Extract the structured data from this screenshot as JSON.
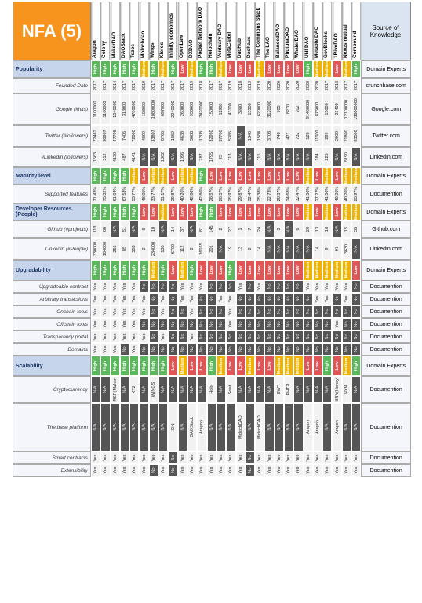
{
  "title": "NFA (5)",
  "source_header": "Source of Knowledge",
  "projects": [
    "Aragon",
    "Colony",
    "MakerDAO",
    "DAOStack",
    "Tezos",
    "Molochdao",
    "Wings",
    "Kleros",
    "Infinity economics",
    "OpenLaw",
    "DXDAO",
    "Pocket Network DAO",
    "Holochain",
    "Ventuary DAO",
    "MetaCartel",
    "DaoHub",
    "Daohaus",
    "The Commons Stack",
    "The LAO",
    "BalancedDAO",
    "PhuturaDAO",
    "WhalerDAO",
    "UNI DAO",
    "Metable DAO",
    "GovBlocks",
    "1RiveDAO",
    "Nexus mutual",
    "Compound"
  ],
  "colors": {
    "high": "#5cb85c",
    "low": "#e05555",
    "medium": "#f0b400",
    "na": "#555555"
  },
  "rows": [
    {
      "label": "Popularity",
      "section": true,
      "source": "Domain Experts",
      "values": [
        "High",
        "High",
        "High",
        "High",
        "High",
        "Medium",
        "High",
        "Medium",
        "High",
        "Low",
        "Medium",
        "High",
        "High",
        "Medium",
        "Low",
        "Low",
        "Low",
        "Medium",
        "Low",
        "Low",
        "Low",
        "Low",
        "High",
        "Medium",
        "Medium",
        "Low",
        "Medium",
        "High"
      ]
    },
    {
      "label": "Founded Date",
      "source": "crunchbase.com",
      "values": [
        "2017",
        "2017",
        "2014",
        "2017",
        "2017",
        "2019",
        "2017",
        "2017",
        "2017",
        "2017",
        "2019",
        "2018",
        "2017",
        "2017",
        "2019",
        "2018",
        "2019",
        "2019",
        "2020",
        "2020",
        "2020",
        "2020",
        "2020",
        "2020",
        "2017",
        "2018",
        "2017",
        "2017"
      ]
    },
    {
      "label": "Google (#hits)",
      "source": "Google.com",
      "values": [
        "1100000",
        "1160000",
        "1040000",
        "318000",
        "4700000",
        "108000",
        "10800000",
        "697000",
        "2240000",
        "260000",
        "936000",
        "2420000",
        "150000",
        "11900",
        "43100",
        "3980",
        "13300",
        "620000",
        "3120000",
        "705",
        "8270",
        "702",
        "91400000",
        "876000",
        "15000",
        "23400",
        "12100000",
        "136000000"
      ]
    },
    {
      "label": "Twitter (#followers)",
      "source": "Twitter.com",
      "values": [
        "72462",
        "30987",
        "47708",
        "7405",
        "72000",
        "4899",
        "33807",
        "8765",
        "1859",
        "4638",
        "3683",
        "1208",
        "32990",
        "37700",
        "5385",
        "N/A",
        "1340",
        "1584",
        "3703",
        "748",
        "471",
        "732",
        "128",
        "11600",
        "299",
        "2030",
        "21800",
        "83500"
      ]
    },
    {
      "label": "#Linkedin (followers)",
      "source": "LinkedIn.com",
      "values": [
        "1563",
        "312",
        "4130",
        "487",
        "4141",
        "N/A",
        "N/A",
        "1362",
        "N/A",
        "1096",
        "N/A",
        "287",
        "1795",
        "25",
        "113",
        "N/A",
        "N/A",
        "115",
        "N/A",
        "N/A",
        "N/A",
        "N/A",
        "N/A",
        "184",
        "225",
        "N/A",
        "5190",
        "N/A"
      ]
    },
    {
      "label": "Maturity level",
      "section": true,
      "source": "Domain Experts",
      "values": [
        "High",
        "High",
        "High",
        "High",
        "Medium",
        "Low",
        "Medium",
        "Medium",
        "Low",
        "Medium",
        "Medium",
        "High",
        "Low",
        "Low",
        "Low",
        "Low",
        "Low",
        "Low",
        "Low",
        "Low",
        "Low",
        "Low",
        "Medium",
        "Low",
        "Medium",
        "Low",
        "Medium",
        "Medium"
      ]
    },
    {
      "label": "Supported features",
      "source": "Documention",
      "values": [
        "71.43%",
        "75.32%",
        "61.04%",
        "67.53%",
        "33.77%",
        "48.05%",
        "33.77%",
        "31.17%",
        "29.87%",
        "40.26%",
        "42.86%",
        "42.86%",
        "28.57%",
        "28.57%",
        "25.97%",
        "29.87%",
        "32.47%",
        "25.38%",
        "22.73%",
        "28.57%",
        "24.68%",
        "32.47%",
        "41.56%",
        "27.27%",
        "41.56%",
        "40.26%",
        "40.26%",
        "25.97%"
      ]
    },
    {
      "label": "Developer Resources (People)",
      "section": true,
      "source": "Domain Experts",
      "values": [
        "High",
        "High",
        "High",
        "High",
        "High",
        "Low",
        "Low",
        "Medium",
        "Low",
        "Low",
        "Low",
        "High",
        "High",
        "Low",
        "Low",
        "Low",
        "Low",
        "Low",
        "Low",
        "Low",
        "Low",
        "Low",
        "Medium",
        "Low",
        "Medium",
        "Low",
        "Medium",
        "Medium"
      ]
    },
    {
      "label": "Github (#projects)",
      "source": "Github.com",
      "values": [
        "113",
        "68",
        "N/A",
        "51",
        "N/A",
        "6",
        "10",
        "N/A",
        "14",
        "37",
        "N/A",
        "81",
        "145",
        "2",
        "27",
        "1",
        "7",
        "24",
        "N/A",
        "3",
        "N/A",
        "6",
        "20",
        "13",
        "10",
        "N/A",
        "15",
        "35"
      ]
    },
    {
      "label": "Linkedin (#People)",
      "source": "LinkedIn.com",
      "values": [
        "330000",
        "184000",
        "256",
        "85",
        "553",
        "2",
        "234000",
        "136",
        "6700",
        "112",
        "2",
        "26165",
        "201",
        "N/A",
        "19",
        "13",
        "2",
        "14",
        "N/A",
        "N/A",
        "N/A",
        "N/A",
        "N/A",
        "14",
        "9",
        "97",
        "3630",
        "N/A"
      ]
    },
    {
      "label": "Upgradability",
      "section": true,
      "source": "Domain Experts",
      "values": [
        "High",
        "High",
        "High",
        "High",
        "High",
        "High",
        "Medium",
        "High",
        "Low",
        "Medium",
        "High",
        "Low",
        "Low",
        "Low",
        "High",
        "Low",
        "Low",
        "Low",
        "Low",
        "Low",
        "Low",
        "Low",
        "Medium",
        "Medium",
        "Medium",
        "Medium",
        "Medium",
        "Low"
      ]
    },
    {
      "label": "Upgradeable contract",
      "source": "Documention",
      "values": [
        "Yes",
        "Yes",
        "Yes",
        "Yes",
        "Yes",
        "No",
        "No",
        "No",
        "No",
        "Yes",
        "Yes",
        "Yes",
        "No",
        "No",
        "No",
        "Yes",
        "No",
        "Yes",
        "No",
        "No",
        "No",
        "No",
        "Yes",
        "Yes",
        "Yes",
        "Yes",
        "Yes",
        "No"
      ]
    },
    {
      "label": "Arbitrary transactions",
      "source": "Documention",
      "values": [
        "Yes",
        "Yes",
        "Yes",
        "Yes",
        "Yes",
        "Yes",
        "No",
        "Yes",
        "No",
        "Yes",
        "Yes",
        "No",
        "No",
        "Yes",
        "Yes",
        "No",
        "No",
        "No",
        "No",
        "No",
        "No",
        "No",
        "No",
        "Yes",
        "Yes",
        "No",
        "Yes",
        "No"
      ]
    },
    {
      "label": "Onchain tools",
      "source": "Documention",
      "values": [
        "Yes",
        "Yes",
        "Yes",
        "Yes",
        "Yes",
        "Yes",
        "No",
        "Yes",
        "No",
        "No",
        "Yes",
        "No",
        "No",
        "No",
        "Yes",
        "No",
        "No",
        "No",
        "No",
        "No",
        "No",
        "No",
        "No",
        "No",
        "No",
        "No",
        "No",
        "No"
      ]
    },
    {
      "label": "Offchain tools",
      "source": "Documention",
      "values": [
        "Yes",
        "Yes",
        "Yes",
        "Yes",
        "Yes",
        "No",
        "No",
        "No",
        "No",
        "No",
        "No",
        "No",
        "No",
        "No",
        "Yes",
        "No",
        "No",
        "No",
        "No",
        "No",
        "No",
        "No",
        "No",
        "No",
        "No",
        "Yes",
        "No",
        "No"
      ]
    },
    {
      "label": "Transparency portal",
      "source": "Documention",
      "values": [
        "Yes",
        "Yes",
        "Yes",
        "Yes",
        "Yes",
        "Yes",
        "No",
        "Yes",
        "No",
        "No",
        "Yes",
        "No",
        "No",
        "No",
        "No",
        "No",
        "No",
        "No",
        "No",
        "No",
        "No",
        "No",
        "No",
        "No",
        "No",
        "No",
        "No",
        "No"
      ]
    },
    {
      "label": "Domains",
      "source": "Documention",
      "values": [
        "Yes",
        "Yes",
        "Yes",
        "No",
        "Yes",
        "No",
        "No",
        "No",
        "No",
        "No",
        "No",
        "No",
        "No",
        "No",
        "No",
        "No",
        "No",
        "No",
        "No",
        "No",
        "No",
        "No",
        "No",
        "No",
        "No",
        "No",
        "No",
        "No"
      ]
    },
    {
      "label": "Scalability",
      "section": true,
      "source": "Domain Experts",
      "values": [
        "High",
        "High",
        "High",
        "High",
        "High",
        "High",
        "High",
        "High",
        "Low",
        "Medium",
        "Low",
        "Low",
        "High",
        "Medium",
        "Low",
        "Low",
        "Medium",
        "Low",
        "Low",
        "Medium",
        "Medium",
        "Medium",
        "Low",
        "Low",
        "High",
        "Low",
        "Medium",
        "High"
      ]
    },
    {
      "label": "Cryptocurrency",
      "source": "Documention",
      "values": [
        "N/A",
        "N/A",
        "MKR(Maker)",
        "N/A",
        "XTZ",
        "N/A",
        "WINGS",
        "N/A",
        "N/A",
        "N/A",
        "N/A",
        "N/A",
        "Holo",
        "N/A",
        "Seed",
        "N/A",
        "N/A",
        "N/A",
        "N/A",
        "BWT",
        "PHTR",
        "N/A",
        "N/A",
        "N/A",
        "N/A",
        "HNY(Honey)",
        "NXM",
        "N/A"
      ]
    },
    {
      "label": "The base platform",
      "source": "Documention",
      "values": [
        "N/A",
        "N/A",
        "N/A",
        "N/A",
        "N/A",
        "N/A",
        "N/A",
        "N/A",
        "XIN",
        "N/A",
        "DAOStack",
        "Aragon",
        "N/A",
        "N/A",
        "N/A",
        "MolochDAO",
        "N/A",
        "MolochDAO",
        "N/A",
        "N/A",
        "N/A",
        "N/A",
        "Aragon",
        "Aragon",
        "N/A",
        "Aragon",
        "N/A",
        "N/A"
      ]
    },
    {
      "label": "Smart contracts",
      "source": "Documention",
      "values": [
        "Yes",
        "Yes",
        "Yes",
        "Yes",
        "Yes",
        "Yes",
        "Yes",
        "Yes",
        "No",
        "Yes",
        "Yes",
        "Yes",
        "Yes",
        "Yes",
        "Yes",
        "Yes",
        "No",
        "Yes",
        "Yes",
        "Yes",
        "Yes",
        "Yes",
        "Yes",
        "Yes",
        "Yes",
        "Yes",
        "Yes",
        "Yes"
      ]
    },
    {
      "label": "Extensibility",
      "source": "Documention",
      "values": [
        "Yes",
        "Yes",
        "Yes",
        "Yes",
        "Yes",
        "Yes",
        "No",
        "Yes",
        "No",
        "Yes",
        "Yes",
        "Yes",
        "Yes",
        "Yes",
        "Yes",
        "Yes",
        "No",
        "Yes",
        "Yes",
        "Yes",
        "Yes",
        "Yes",
        "Yes",
        "Yes",
        "Yes",
        "Yes",
        "Yes",
        "Yes"
      ]
    }
  ]
}
